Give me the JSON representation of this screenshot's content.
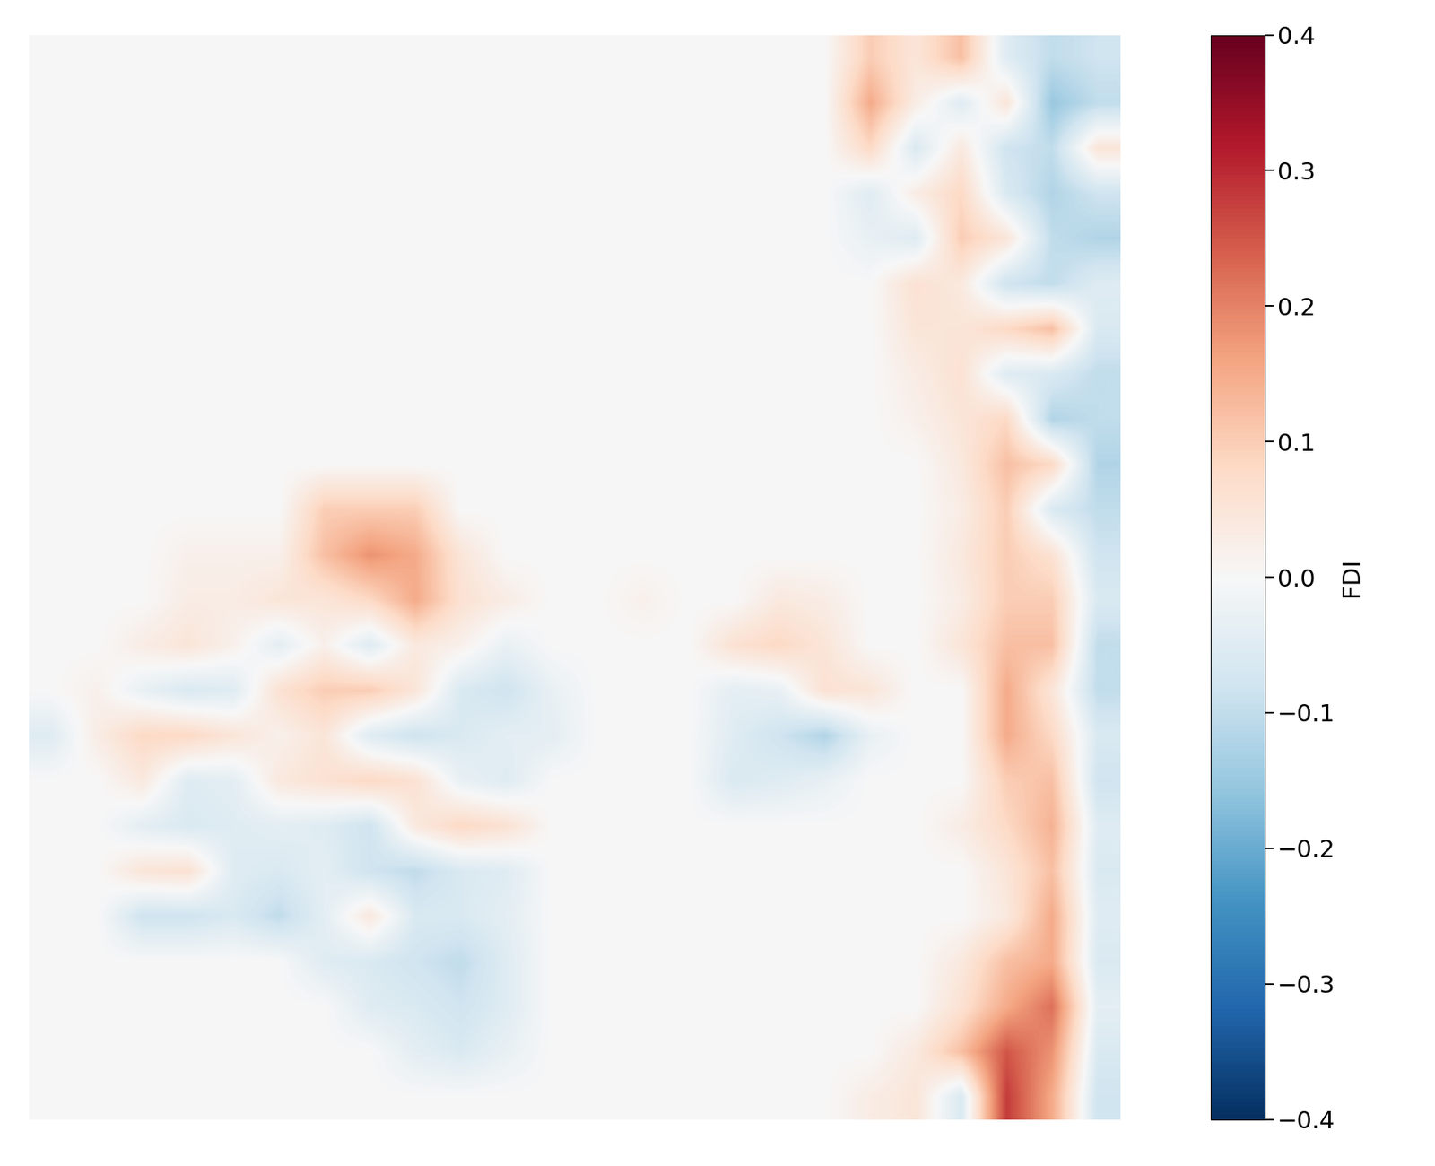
{
  "chart_data": {
    "type": "heatmap",
    "tick_labels": false,
    "cells": [
      [
        0,
        0,
        0,
        0,
        0,
        0,
        0,
        0,
        0,
        0,
        0,
        0,
        0,
        0,
        0,
        0,
        0,
        0,
        0.1,
        0.05,
        0.12,
        -0.05,
        -0.1,
        -0.08
      ],
      [
        0,
        0,
        0,
        0,
        0,
        0,
        0,
        0,
        0,
        0,
        0,
        0,
        0,
        0,
        0,
        0,
        0,
        0,
        0.15,
        0.03,
        -0.05,
        0.05,
        -0.15,
        -0.1
      ],
      [
        0,
        0,
        0,
        0,
        0,
        0,
        0,
        0,
        0,
        0,
        0,
        0,
        0,
        0,
        0,
        0,
        0,
        0,
        0.08,
        -0.06,
        0.04,
        -0.08,
        -0.1,
        0.05
      ],
      [
        0,
        0,
        0,
        0,
        0,
        0,
        0,
        0,
        0,
        0,
        0,
        0,
        0,
        0,
        0,
        0,
        0,
        0,
        -0.05,
        0.03,
        0.08,
        -0.06,
        -0.12,
        -0.08
      ],
      [
        0,
        0,
        0,
        0,
        0,
        0,
        0,
        0,
        0,
        0,
        0,
        0,
        0,
        0,
        0,
        0,
        0,
        0,
        -0.03,
        -0.05,
        0.1,
        0.05,
        -0.1,
        -0.12
      ],
      [
        0,
        0,
        0,
        0,
        0,
        0,
        0,
        0,
        0,
        0,
        0,
        0,
        0,
        0,
        0,
        0,
        0,
        0,
        0,
        0.06,
        0.04,
        -0.08,
        -0.1,
        -0.05
      ],
      [
        0,
        0,
        0,
        0,
        0,
        0,
        0,
        0,
        0,
        0,
        0,
        0,
        0,
        0,
        0,
        0,
        0,
        0,
        0,
        0.05,
        0.05,
        0.08,
        0.12,
        -0.06
      ],
      [
        0,
        0,
        0,
        0,
        0,
        0,
        0,
        0,
        0,
        0,
        0,
        0,
        0,
        0,
        0,
        0,
        0,
        0,
        0,
        0.03,
        0.06,
        -0.05,
        -0.06,
        -0.1
      ],
      [
        0,
        0,
        0,
        0,
        0,
        0,
        0,
        0,
        0,
        0,
        0,
        0,
        0,
        0,
        0,
        0,
        0,
        0,
        0,
        0.02,
        0.05,
        0.08,
        -0.12,
        -0.1
      ],
      [
        0,
        0,
        0,
        0,
        0,
        0,
        0,
        0,
        0,
        0,
        0,
        0,
        0,
        0,
        0,
        0,
        0,
        0,
        0,
        0,
        0.04,
        0.12,
        0.08,
        -0.12
      ],
      [
        0,
        0,
        0,
        0,
        0,
        0,
        0.1,
        0.1,
        0.1,
        0,
        0,
        0,
        0,
        0,
        0,
        0,
        0,
        0,
        0,
        0,
        0.03,
        0.1,
        -0.06,
        -0.1
      ],
      [
        0,
        0,
        0,
        0.02,
        0.02,
        0.02,
        0.12,
        0.18,
        0.15,
        0.05,
        0,
        0,
        0,
        0,
        0,
        0,
        0,
        0,
        0,
        0,
        0.04,
        0.1,
        0.06,
        -0.08
      ],
      [
        0,
        0,
        0,
        0.03,
        0.03,
        0.05,
        0.05,
        0.08,
        0.15,
        0.06,
        0.03,
        0,
        0,
        0.02,
        0,
        0,
        0.04,
        0.03,
        0,
        0,
        0.03,
        0.1,
        0.1,
        -0.06
      ],
      [
        0,
        0,
        0.03,
        0.05,
        0.02,
        -0.04,
        0.02,
        -0.05,
        0.04,
        0.02,
        -0.03,
        0,
        0,
        0,
        0,
        0.06,
        0.08,
        0.05,
        0,
        0,
        0.05,
        0.12,
        0.12,
        -0.1
      ],
      [
        0,
        0.02,
        -0.03,
        -0.06,
        -0.05,
        0.06,
        0.1,
        0.1,
        0.05,
        -0.06,
        -0.08,
        -0.03,
        0,
        0,
        0,
        -0.04,
        -0.03,
        0.06,
        0.05,
        0,
        0,
        0.15,
        0.05,
        -0.1
      ],
      [
        -0.05,
        0.03,
        0.08,
        0.08,
        0.05,
        0.02,
        0.05,
        -0.05,
        -0.08,
        -0.06,
        -0.04,
        -0.04,
        0,
        0,
        0,
        -0.05,
        -0.08,
        -0.12,
        -0.03,
        0,
        0,
        0.15,
        0.08,
        -0.06
      ],
      [
        0,
        0,
        0.04,
        -0.05,
        -0.04,
        0.04,
        0.06,
        0.08,
        0.06,
        -0.03,
        -0.05,
        0,
        0,
        0,
        0,
        -0.06,
        -0.05,
        -0.03,
        0,
        0,
        0,
        0.1,
        0.12,
        -0.08
      ],
      [
        0,
        0,
        -0.04,
        -0.06,
        -0.05,
        -0.04,
        -0.05,
        -0.08,
        0.04,
        0.08,
        0.06,
        0,
        0,
        0,
        0,
        0,
        0,
        0,
        0,
        0,
        0.03,
        0.08,
        0.14,
        -0.05
      ],
      [
        0,
        0,
        0.05,
        0.06,
        -0.05,
        -0.06,
        -0.04,
        -0.08,
        -0.1,
        -0.06,
        -0.05,
        0,
        0,
        0,
        0,
        0,
        0,
        0,
        0,
        0,
        0,
        0.05,
        0.12,
        -0.06
      ],
      [
        0,
        0,
        -0.08,
        -0.08,
        -0.06,
        -0.1,
        -0.04,
        0.04,
        -0.06,
        -0.06,
        -0.04,
        0,
        0,
        0,
        0,
        0,
        0,
        0,
        0,
        0,
        0,
        0.04,
        0.15,
        -0.05
      ],
      [
        0,
        0,
        0,
        0,
        0,
        0,
        -0.05,
        -0.06,
        -0.08,
        -0.1,
        -0.05,
        0,
        0,
        0,
        0,
        0,
        0,
        0,
        0,
        0,
        0.04,
        0.12,
        0.15,
        -0.06
      ],
      [
        0,
        0,
        0,
        0,
        0,
        0,
        0,
        -0.05,
        -0.06,
        -0.08,
        -0.05,
        0,
        0,
        0,
        0,
        0,
        0,
        0,
        0,
        0,
        0.06,
        0.15,
        0.22,
        -0.04
      ],
      [
        0,
        0,
        0,
        0,
        0,
        0,
        0,
        0,
        -0.04,
        -0.06,
        -0.03,
        0,
        0,
        0,
        0,
        0,
        0,
        0,
        0,
        0.04,
        0.12,
        0.25,
        0.18,
        -0.06
      ],
      [
        0,
        0,
        0,
        0,
        0,
        0,
        0,
        0,
        0,
        0,
        0,
        0,
        0,
        0,
        0,
        0,
        0,
        0,
        0.03,
        0.05,
        -0.06,
        0.28,
        0.15,
        -0.08
      ]
    ],
    "colorbar": {
      "label": "FDI",
      "range": [
        -0.4,
        0.4
      ],
      "ticks": [
        {
          "value": -0.4,
          "label": "−0.4"
        },
        {
          "value": -0.3,
          "label": "−0.3"
        },
        {
          "value": -0.2,
          "label": "−0.2"
        },
        {
          "value": -0.1,
          "label": "−0.1"
        },
        0.0,
        0.1,
        0.2,
        0.3,
        0.4
      ]
    }
  }
}
